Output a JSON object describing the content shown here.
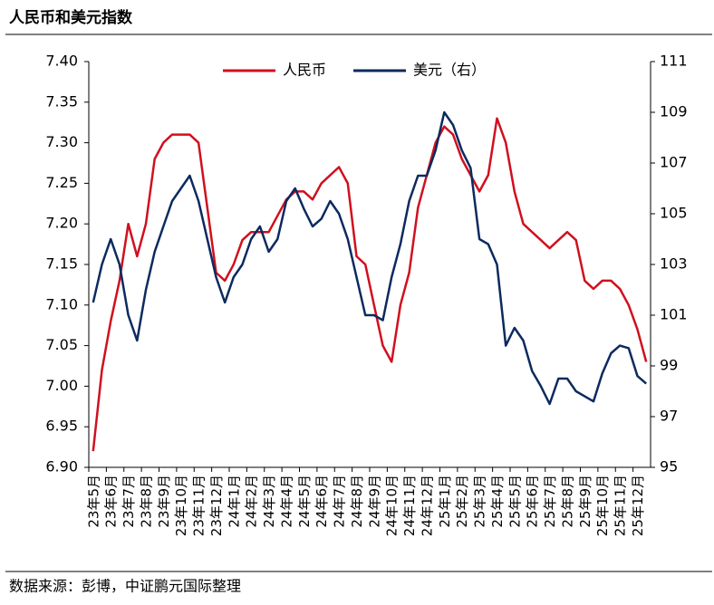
{
  "chart_data": {
    "type": "line",
    "title": "人民币和美元指数",
    "source": "数据来源：彭博，中证鹏元国际整理",
    "x": [
      "23年5月",
      null,
      "23年6月",
      null,
      "23年7月",
      null,
      "23年8月",
      null,
      "23年9月",
      null,
      "23年10月",
      null,
      "23年11月",
      null,
      "23年12月",
      null,
      "24年1月",
      null,
      "24年2月",
      null,
      "24年3月",
      null,
      "24年4月",
      null,
      "24年5月",
      null,
      "24年6月",
      null,
      "24年7月",
      null,
      "24年8月",
      null,
      "24年9月",
      null,
      "24年10月",
      null,
      "24年11月",
      null,
      "24年12月",
      null,
      "25年1月",
      null,
      "25年2月",
      null,
      "25年3月",
      null,
      "25年4月",
      null,
      "25年5月",
      null,
      "25年6月",
      null,
      "25年7月",
      null,
      "25年8月",
      null,
      "25年9月",
      null,
      "25年10月",
      null,
      "25年11月",
      null,
      "25年12月",
      null
    ],
    "series": [
      {
        "name": "人民币",
        "color": "#d0101e",
        "axis": "y",
        "values": [
          6.92,
          7.02,
          7.08,
          7.13,
          7.2,
          7.16,
          7.2,
          7.28,
          7.3,
          7.31,
          7.31,
          7.31,
          7.3,
          7.22,
          7.14,
          7.13,
          7.15,
          7.18,
          7.19,
          7.19,
          7.19,
          7.21,
          7.23,
          7.24,
          7.24,
          7.23,
          7.25,
          7.26,
          7.27,
          7.25,
          7.16,
          7.15,
          7.1,
          7.05,
          7.03,
          7.1,
          7.14,
          7.22,
          7.26,
          7.3,
          7.32,
          7.31,
          7.28,
          7.26,
          7.24,
          7.26,
          7.33,
          7.3,
          7.24,
          7.2,
          7.19,
          7.18,
          7.17,
          7.18,
          7.19,
          7.18,
          7.13,
          7.12,
          7.13,
          7.13,
          7.12,
          7.1,
          7.07,
          7.03
        ]
      },
      {
        "name": "美元（右）",
        "color": "#0b2a5f",
        "axis": "y2",
        "values": [
          101.5,
          103,
          104,
          103,
          101,
          100,
          102,
          103.5,
          104.5,
          105.5,
          106,
          106.5,
          105.5,
          104,
          102.5,
          101.5,
          102.5,
          103,
          104,
          104.5,
          103.5,
          104,
          105.5,
          106,
          105.2,
          104.5,
          104.8,
          105.5,
          105,
          104,
          102.5,
          101,
          101,
          100.8,
          102.5,
          103.8,
          105.5,
          106.5,
          106.5,
          107.5,
          109,
          108.5,
          107.5,
          106.8,
          104,
          103.8,
          103,
          99.8,
          100.5,
          100,
          98.8,
          98.2,
          97.5,
          98.5,
          98.5,
          98,
          97.8,
          97.6,
          98.7,
          99.5,
          99.8,
          99.7,
          98.6,
          98.3
        ]
      }
    ],
    "ylim": [
      6.9,
      7.4
    ],
    "yticks": [
      {
        "value": 6.9,
        "label": "6.90"
      },
      6.95,
      {
        "value": 7.0,
        "label": "7.00"
      },
      7.05,
      {
        "value": 7.1,
        "label": "7.10"
      },
      7.15,
      {
        "value": 7.2,
        "label": "7.20"
      },
      7.25,
      {
        "value": 7.3,
        "label": "7.30"
      },
      7.35,
      {
        "value": 7.4,
        "label": "7.40"
      }
    ],
    "y2lim": [
      95,
      111
    ],
    "y2ticks": [
      95,
      97,
      99,
      101,
      103,
      105,
      107,
      109,
      111
    ],
    "legend": "top"
  }
}
